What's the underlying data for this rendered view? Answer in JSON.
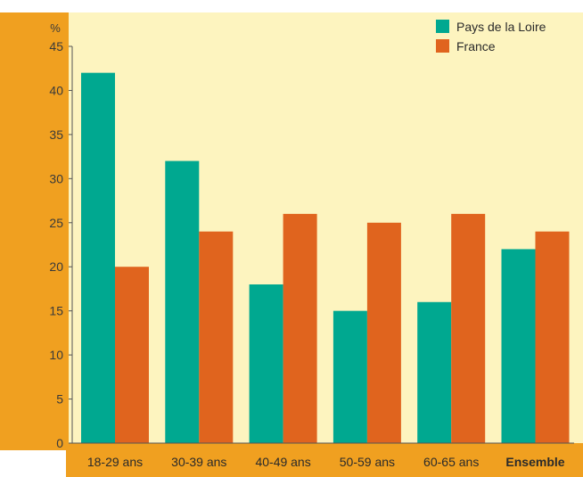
{
  "chart_data": {
    "type": "bar",
    "title": "",
    "ylabel": "%",
    "xlabel": "",
    "ylim": [
      0,
      45
    ],
    "yticks": [
      0,
      5,
      10,
      15,
      20,
      25,
      30,
      35,
      40,
      45
    ],
    "categories": [
      "18-29 ans",
      "30-39 ans",
      "40-49 ans",
      "50-59 ans",
      "60-65 ans",
      "Ensemble"
    ],
    "emphasized_category": "Ensemble",
    "series": [
      {
        "name": "Pays de la Loire",
        "color": "#00a890",
        "values": [
          42,
          32,
          18,
          15,
          16,
          22
        ]
      },
      {
        "name": "France",
        "color": "#e0641e",
        "values": [
          20,
          24,
          26,
          25,
          26,
          24
        ]
      }
    ],
    "grid": false,
    "legend_position": "top-right",
    "colors": {
      "background": "#fdf4bf",
      "frame": "#f0a020",
      "axis": "#555555"
    }
  }
}
